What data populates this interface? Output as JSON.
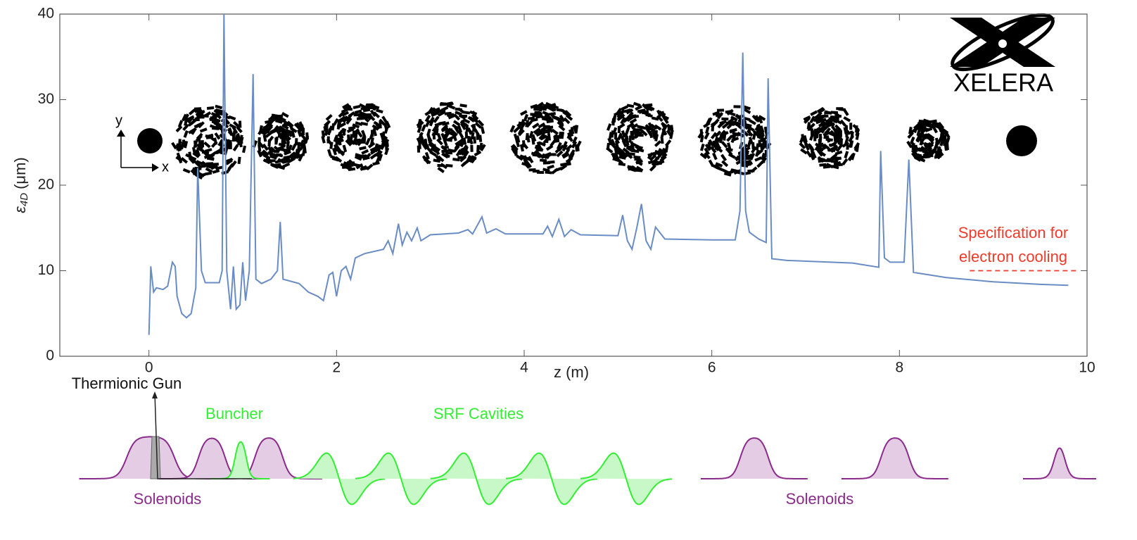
{
  "chart_data": {
    "type": "line",
    "xlabel": "z (m)",
    "ylabel": {
      "symbol": "ε",
      "subscript": "4D",
      "unit": "(μm)"
    },
    "color": "#6a8cc4",
    "xlim": [
      -0.95,
      10
    ],
    "ylim": [
      0,
      40
    ],
    "xticks": [
      0,
      2,
      4,
      6,
      8,
      10
    ],
    "yticks": [
      0,
      10,
      20,
      30,
      40
    ],
    "x": [
      0,
      0.02,
      0.05,
      0.08,
      0.15,
      0.2,
      0.25,
      0.28,
      0.3,
      0.35,
      0.4,
      0.45,
      0.5,
      0.52,
      0.56,
      0.6,
      0.75,
      0.78,
      0.8,
      0.83,
      0.87,
      0.9,
      0.93,
      0.97,
      1.0,
      1.03,
      1.07,
      1.11,
      1.14,
      1.2,
      1.3,
      1.37,
      1.4,
      1.43,
      1.6,
      1.7,
      1.8,
      1.86,
      1.92,
      1.96,
      2.0,
      2.05,
      2.1,
      2.15,
      2.2,
      2.3,
      2.5,
      2.55,
      2.6,
      2.66,
      2.7,
      2.75,
      2.8,
      2.86,
      2.9,
      3.0,
      3.3,
      3.4,
      3.45,
      3.55,
      3.6,
      3.7,
      3.8,
      4.2,
      4.25,
      4.3,
      4.37,
      4.43,
      4.5,
      4.6,
      5.0,
      5.05,
      5.1,
      5.15,
      5.2,
      5.25,
      5.3,
      5.35,
      5.4,
      5.5,
      6.0,
      6.25,
      6.3,
      6.33,
      6.36,
      6.4,
      6.5,
      6.58,
      6.6,
      6.64,
      6.8,
      7.5,
      7.78,
      7.8,
      7.84,
      7.9,
      8.05,
      8.1,
      8.15,
      8.5,
      9.0,
      9.5,
      9.8
    ],
    "values": [
      2.5,
      10.5,
      7.5,
      8,
      7.8,
      8.2,
      11,
      10.5,
      7,
      5,
      4.5,
      5,
      8,
      22,
      10,
      8.6,
      8.6,
      10,
      40,
      10,
      5.5,
      10.5,
      5.5,
      6,
      11,
      6.5,
      10,
      33,
      9,
      8.5,
      9,
      10,
      15.7,
      9,
      8.5,
      7.5,
      7,
      6.5,
      9.5,
      9.8,
      7,
      10,
      10.5,
      9,
      11.5,
      12,
      12.5,
      13.5,
      12,
      15.5,
      13,
      14.5,
      13.5,
      15,
      13.5,
      14.2,
      14.4,
      14.8,
      14.3,
      16.3,
      14.4,
      14.9,
      14.3,
      14.3,
      15.2,
      14,
      16,
      14,
      14.8,
      14.2,
      14.1,
      16.5,
      13.5,
      12.5,
      15,
      17.8,
      13.5,
      12.5,
      15.1,
      13.7,
      13.6,
      13.6,
      17,
      35.5,
      17,
      14.5,
      13.7,
      13.3,
      32.5,
      11.4,
      11.2,
      10.9,
      10.4,
      24,
      11.5,
      11,
      11,
      23,
      9.8,
      9.2,
      8.7,
      8.4,
      8.3
    ],
    "specification": {
      "lines": [
        "Specification for",
        "electron cooling"
      ],
      "value": 10,
      "x_range": [
        8.75,
        9.92
      ],
      "color": "#ee3b2b"
    },
    "axes_icon": {
      "x": "x",
      "y": "y"
    },
    "logo": "XELERA"
  },
  "elements": {
    "gun": "Thermionic Gun",
    "buncher": "Buncher",
    "cavities": "SRF Cavities",
    "solenoids_left": "Solenoids",
    "solenoids_right": "Solenoids"
  }
}
